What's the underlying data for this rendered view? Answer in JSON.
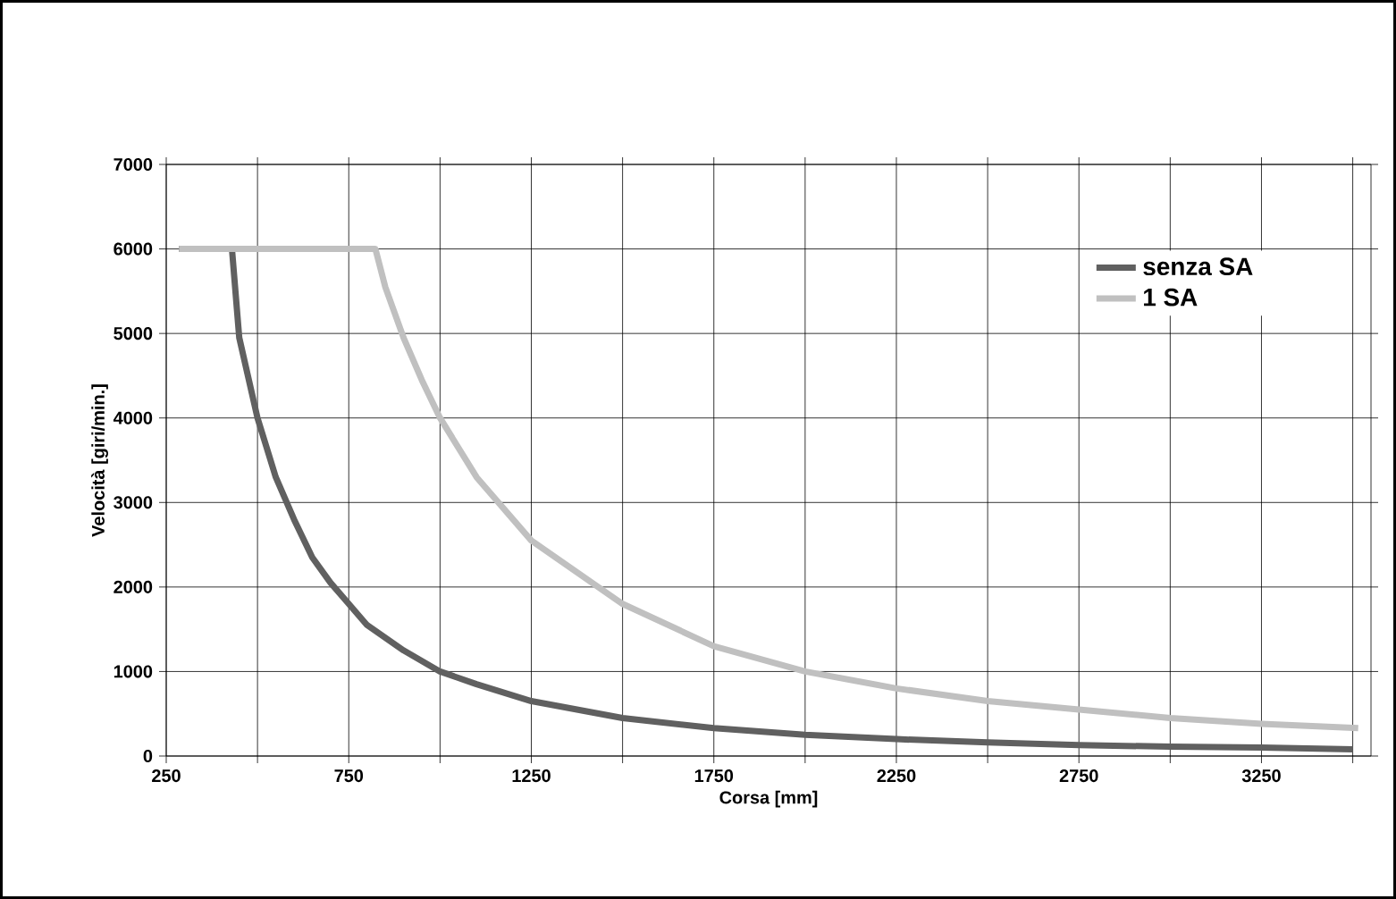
{
  "chart_data": {
    "type": "line",
    "xlabel": "Corsa [mm]",
    "ylabel": "Velocità [giri/min.]",
    "xlim": [
      250,
      3550
    ],
    "ylim": [
      0,
      7000
    ],
    "xticks": [
      250,
      {
        "value": 500,
        "label": null
      },
      750,
      {
        "value": 1000,
        "label": null
      },
      1250,
      {
        "value": 1500,
        "label": null
      },
      1750,
      {
        "value": 2000,
        "label": null
      },
      2250,
      {
        "value": 2500,
        "label": null
      },
      2750,
      {
        "value": 3000,
        "label": null
      },
      3250,
      {
        "value": 3500,
        "label": null
      }
    ],
    "yticks": [
      0,
      1000,
      2000,
      3000,
      4000,
      5000,
      6000,
      7000
    ],
    "grid": true,
    "legend": "top right",
    "marker": "none",
    "line_style": "solid",
    "series": [
      {
        "name": "senza SA",
        "color": "#606060",
        "x": [
          285,
          430,
          450,
          500,
          550,
          600,
          650,
          700,
          750,
          800,
          900,
          1000,
          1100,
          1250,
          1500,
          1750,
          2000,
          2250,
          2500,
          2750,
          3000,
          3250,
          3500
        ],
        "values": [
          6000,
          6000,
          4950,
          4000,
          3300,
          2800,
          2350,
          2050,
          1800,
          1550,
          1250,
          1000,
          850,
          650,
          450,
          330,
          250,
          200,
          160,
          130,
          110,
          100,
          80
        ]
      },
      {
        "name": "1 SA",
        "color": "#c0c0c0",
        "x": [
          285,
          823,
          850,
          900,
          950,
          1000,
          1100,
          1250,
          1500,
          1750,
          2000,
          2250,
          2500,
          2750,
          3000,
          3250,
          3515
        ],
        "values": [
          6000,
          6000,
          5550,
          4950,
          4450,
          4000,
          3300,
          2550,
          1800,
          1300,
          1000,
          800,
          650,
          550,
          450,
          380,
          330
        ]
      }
    ]
  }
}
